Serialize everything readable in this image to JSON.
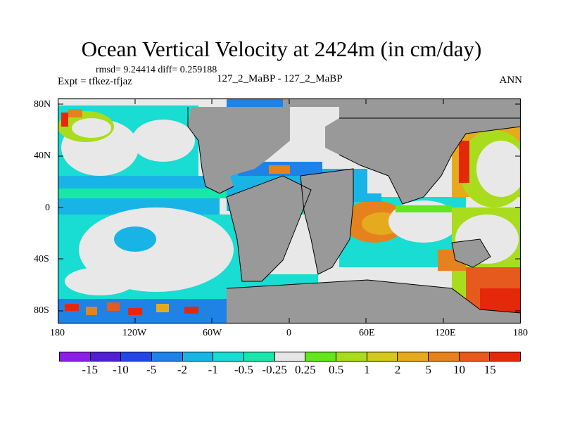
{
  "title": "Ocean Vertical Velocity at 2424m (in cm/day)",
  "stats_text": "rmsd= 9.24414 diff= 0.259188",
  "left_label": "Expt = tfkez-tfjaz",
  "center_label": "127_2_MaBP - 127_2_MaBP",
  "right_label": "ANN",
  "y_ticks": [
    "80N",
    "40N",
    "0",
    "40S",
    "80S"
  ],
  "x_ticks": [
    "180",
    "120W",
    "60W",
    "0",
    "60E",
    "120E",
    "180"
  ],
  "colorbar": {
    "colors": [
      "#8c1ee6",
      "#5020d2",
      "#2346e6",
      "#1e82e6",
      "#19b4e6",
      "#19dcd2",
      "#19e6aa",
      "#e6e6e6",
      "#64e61e",
      "#aadc1e",
      "#d2c81e",
      "#e6aa1e",
      "#e6821e",
      "#e65a1e",
      "#e6280a"
    ],
    "labels": [
      "-15",
      "-10",
      "-5",
      "-2",
      "-1",
      "-0.5",
      "-0.25",
      "0.25",
      "0.5",
      "1",
      "2",
      "5",
      "10",
      "15"
    ]
  },
  "map_colors": {
    "land": "#999999",
    "ocean_neutral": "#e8e8e8",
    "coast_line": "#000000"
  }
}
